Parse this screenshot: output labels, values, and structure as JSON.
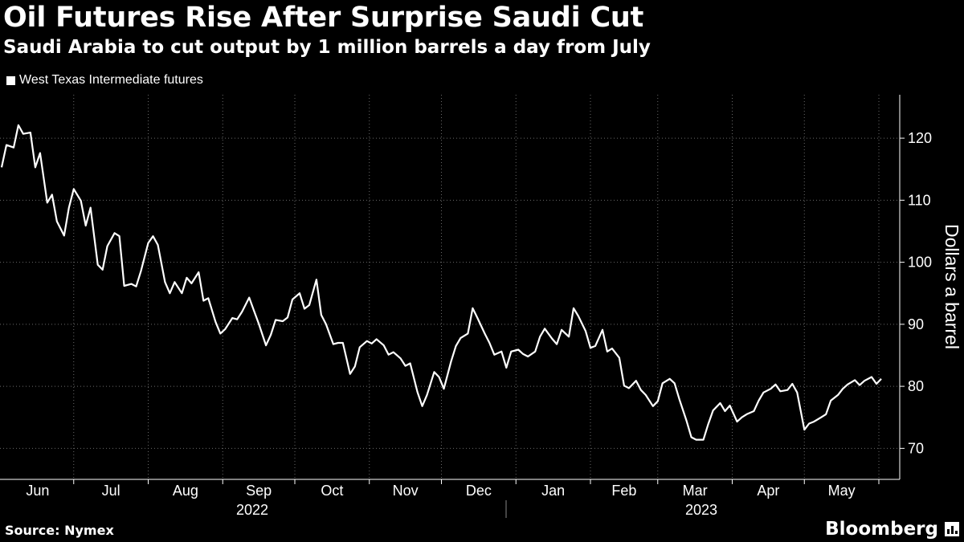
{
  "header": {
    "title": "Oil Futures Rise After Surprise Saudi Cut",
    "subtitle": "Saudi Arabia to cut output by 1 million barrels a day from July"
  },
  "legend": {
    "label": "West Texas Intermediate futures"
  },
  "footer": {
    "source": "Source: Nymex",
    "brand": "Bloomberg"
  },
  "colors": {
    "background": "#000000",
    "line": "#ffffff",
    "grid": "#6a6a6a"
  },
  "chart_data": {
    "type": "line",
    "title": "Oil Futures Rise After Surprise Saudi Cut",
    "subtitle": "Saudi Arabia to cut output by 1 million barrels a day from July",
    "xlabel": "",
    "ylabel": "Dollars a barrel",
    "ylim": [
      65,
      127
    ],
    "yticks": [
      70,
      80,
      90,
      100,
      110,
      120
    ],
    "grid": true,
    "legend_position": "top-left",
    "x_start": "2022-06-01",
    "x_end": "2023-06-02",
    "month_labels": [
      "Jun",
      "Jul",
      "Aug",
      "Sep",
      "Oct",
      "Nov",
      "Dec",
      "Jan",
      "Feb",
      "Mar",
      "Apr",
      "May"
    ],
    "year_labels": [
      "2022",
      "2023"
    ],
    "series": [
      {
        "name": "West Texas Intermediate futures",
        "points": [
          [
            "2022-06-01",
            115.3
          ],
          [
            "2022-06-03",
            118.9
          ],
          [
            "2022-06-06",
            118.5
          ],
          [
            "2022-06-08",
            122.1
          ],
          [
            "2022-06-10",
            120.7
          ],
          [
            "2022-06-13",
            120.9
          ],
          [
            "2022-06-15",
            115.3
          ],
          [
            "2022-06-17",
            117.6
          ],
          [
            "2022-06-20",
            109.6
          ],
          [
            "2022-06-22",
            110.9
          ],
          [
            "2022-06-24",
            106.6
          ],
          [
            "2022-06-27",
            104.3
          ],
          [
            "2022-06-29",
            108.8
          ],
          [
            "2022-07-01",
            111.8
          ],
          [
            "2022-07-04",
            109.9
          ],
          [
            "2022-07-06",
            105.9
          ],
          [
            "2022-07-08",
            108.8
          ],
          [
            "2022-07-11",
            99.6
          ],
          [
            "2022-07-13",
            98.8
          ],
          [
            "2022-07-15",
            102.6
          ],
          [
            "2022-07-18",
            104.7
          ],
          [
            "2022-07-20",
            104.2
          ],
          [
            "2022-07-22",
            96.2
          ],
          [
            "2022-07-25",
            96.5
          ],
          [
            "2022-07-27",
            96.1
          ],
          [
            "2022-07-29",
            98.6
          ],
          [
            "2022-08-01",
            103.1
          ],
          [
            "2022-08-03",
            104.2
          ],
          [
            "2022-08-05",
            102.8
          ],
          [
            "2022-08-08",
            96.8
          ],
          [
            "2022-08-10",
            95.0
          ],
          [
            "2022-08-12",
            96.8
          ],
          [
            "2022-08-15",
            95.0
          ],
          [
            "2022-08-17",
            97.5
          ],
          [
            "2022-08-19",
            96.6
          ],
          [
            "2022-08-22",
            98.4
          ],
          [
            "2022-08-24",
            93.8
          ],
          [
            "2022-08-26",
            94.2
          ],
          [
            "2022-08-29",
            90.4
          ],
          [
            "2022-08-31",
            88.5
          ],
          [
            "2022-09-02",
            89.2
          ],
          [
            "2022-09-05",
            91.0
          ],
          [
            "2022-09-07",
            90.8
          ],
          [
            "2022-09-09",
            92.0
          ],
          [
            "2022-09-12",
            94.3
          ],
          [
            "2022-09-14",
            92.2
          ],
          [
            "2022-09-16",
            90.1
          ],
          [
            "2022-09-19",
            86.6
          ],
          [
            "2022-09-21",
            88.3
          ],
          [
            "2022-09-23",
            90.7
          ],
          [
            "2022-09-26",
            90.5
          ],
          [
            "2022-09-28",
            91.1
          ],
          [
            "2022-09-30",
            94.0
          ],
          [
            "2022-10-03",
            95.0
          ],
          [
            "2022-10-05",
            92.5
          ],
          [
            "2022-10-07",
            93.1
          ],
          [
            "2022-10-10",
            97.2
          ],
          [
            "2022-10-12",
            91.5
          ],
          [
            "2022-10-14",
            90.0
          ],
          [
            "2022-10-17",
            86.8
          ],
          [
            "2022-10-19",
            87.0
          ],
          [
            "2022-10-21",
            87.0
          ],
          [
            "2022-10-24",
            82.0
          ],
          [
            "2022-10-26",
            83.2
          ],
          [
            "2022-10-28",
            86.3
          ],
          [
            "2022-10-31",
            87.3
          ],
          [
            "2022-11-02",
            86.9
          ],
          [
            "2022-11-04",
            87.6
          ],
          [
            "2022-11-07",
            86.6
          ],
          [
            "2022-11-09",
            85.1
          ],
          [
            "2022-11-11",
            85.5
          ],
          [
            "2022-11-14",
            84.5
          ],
          [
            "2022-11-16",
            83.3
          ],
          [
            "2022-11-18",
            83.7
          ],
          [
            "2022-11-21",
            79.1
          ],
          [
            "2022-11-23",
            76.8
          ],
          [
            "2022-11-25",
            78.6
          ],
          [
            "2022-11-28",
            82.3
          ],
          [
            "2022-11-30",
            81.5
          ],
          [
            "2022-12-02",
            79.6
          ],
          [
            "2022-12-05",
            84.0
          ],
          [
            "2022-12-07",
            86.5
          ],
          [
            "2022-12-09",
            87.8
          ],
          [
            "2022-12-12",
            88.5
          ],
          [
            "2022-12-14",
            92.6
          ],
          [
            "2022-12-16",
            91.0
          ],
          [
            "2022-12-19",
            88.5
          ],
          [
            "2022-12-21",
            87.0
          ],
          [
            "2022-12-23",
            85.1
          ],
          [
            "2022-12-26",
            85.6
          ],
          [
            "2022-12-28",
            83.0
          ],
          [
            "2022-12-30",
            85.6
          ],
          [
            "2023-01-02",
            85.9
          ],
          [
            "2023-01-04",
            85.2
          ],
          [
            "2023-01-06",
            84.8
          ],
          [
            "2023-01-09",
            85.6
          ],
          [
            "2023-01-11",
            88.0
          ],
          [
            "2023-01-13",
            89.3
          ],
          [
            "2023-01-16",
            87.7
          ],
          [
            "2023-01-18",
            86.8
          ],
          [
            "2023-01-20",
            89.1
          ],
          [
            "2023-01-23",
            88.0
          ],
          [
            "2023-01-25",
            92.6
          ],
          [
            "2023-01-27",
            91.3
          ],
          [
            "2023-01-30",
            88.9
          ],
          [
            "2023-02-01",
            86.2
          ],
          [
            "2023-02-03",
            86.5
          ],
          [
            "2023-02-06",
            89.1
          ],
          [
            "2023-02-08",
            85.6
          ],
          [
            "2023-02-10",
            86.1
          ],
          [
            "2023-02-13",
            84.6
          ],
          [
            "2023-02-15",
            80.1
          ],
          [
            "2023-02-17",
            79.7
          ],
          [
            "2023-02-20",
            80.9
          ],
          [
            "2023-02-22",
            79.4
          ],
          [
            "2023-02-24",
            78.6
          ],
          [
            "2023-02-27",
            76.8
          ],
          [
            "2023-03-01",
            77.6
          ],
          [
            "2023-03-03",
            80.5
          ],
          [
            "2023-03-06",
            81.2
          ],
          [
            "2023-03-08",
            80.5
          ],
          [
            "2023-03-10",
            77.9
          ],
          [
            "2023-03-13",
            74.4
          ],
          [
            "2023-03-15",
            71.8
          ],
          [
            "2023-03-17",
            71.4
          ],
          [
            "2023-03-20",
            71.4
          ],
          [
            "2023-03-22",
            73.9
          ],
          [
            "2023-03-24",
            76.1
          ],
          [
            "2023-03-27",
            77.3
          ],
          [
            "2023-03-29",
            76.0
          ],
          [
            "2023-03-31",
            76.9
          ],
          [
            "2023-04-03",
            74.3
          ],
          [
            "2023-04-05",
            75.0
          ],
          [
            "2023-04-07",
            75.5
          ],
          [
            "2023-04-10",
            76.0
          ],
          [
            "2023-04-12",
            77.7
          ],
          [
            "2023-04-14",
            79.0
          ],
          [
            "2023-04-17",
            79.6
          ],
          [
            "2023-04-19",
            80.3
          ],
          [
            "2023-04-21",
            79.2
          ],
          [
            "2023-04-24",
            79.4
          ],
          [
            "2023-04-26",
            80.4
          ],
          [
            "2023-04-28",
            79.0
          ],
          [
            "2023-05-01",
            73.0
          ],
          [
            "2023-05-03",
            74.0
          ],
          [
            "2023-05-05",
            74.3
          ],
          [
            "2023-05-08",
            75.0
          ],
          [
            "2023-05-10",
            75.5
          ],
          [
            "2023-05-12",
            77.7
          ],
          [
            "2023-05-15",
            78.6
          ],
          [
            "2023-05-17",
            79.6
          ],
          [
            "2023-05-19",
            80.3
          ],
          [
            "2023-05-22",
            81.0
          ],
          [
            "2023-05-24",
            80.2
          ],
          [
            "2023-05-26",
            80.9
          ],
          [
            "2023-05-29",
            81.5
          ],
          [
            "2023-05-31",
            80.4
          ],
          [
            "2023-06-02",
            81.2
          ]
        ]
      }
    ]
  }
}
